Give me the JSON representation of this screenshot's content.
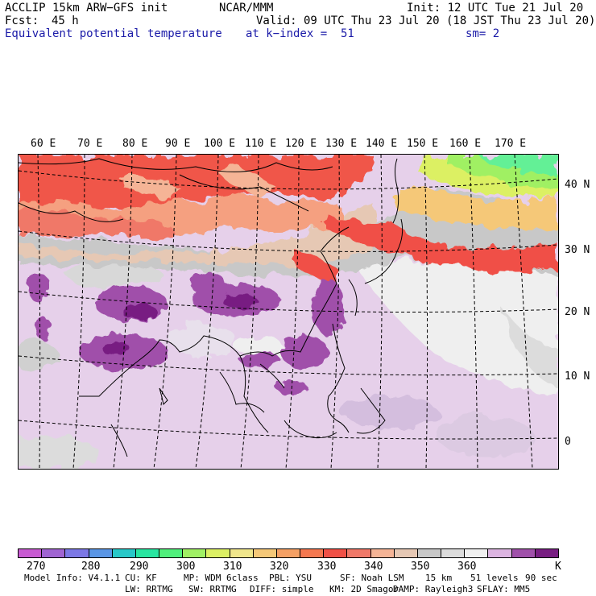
{
  "header": {
    "model": "ACCLIP 15km ARW−GFS init",
    "org": "NCAR/MMM",
    "init": "Init: 12 UTC Tue 21 Jul 20",
    "fcst_label": "Fcst:",
    "fcst_value": "45 h",
    "valid": "Valid: 09 UTC Thu 23 Jul 20 (18 JST Thu 23 Jul 20)",
    "field": "Equivalent potential temperature",
    "level": "at k−index =  51",
    "smooth": "sm= 2"
  },
  "map": {
    "lon_labels": [
      "60 E",
      "70 E",
      "80 E",
      "90 E",
      "100 E",
      "110 E",
      "120 E",
      "130 E",
      "140 E",
      "150 E",
      "160 E",
      "170 E"
    ],
    "lat_labels": [
      "40 N",
      "30 N",
      "20 N",
      "10 N",
      "0"
    ]
  },
  "colorbar": {
    "colors": [
      "#c85ad2",
      "#a064d2",
      "#7c78e6",
      "#5a96e6",
      "#28c8c8",
      "#28e6a0",
      "#50f07c",
      "#a0f064",
      "#dcf064",
      "#f0e68c",
      "#f5c878",
      "#f5a064",
      "#f57850",
      "#f05046",
      "#f07868",
      "#f5b496",
      "#e6c8b4",
      "#c8c8c8",
      "#dcdcdc",
      "#f0f0f0",
      "#dcb4e1",
      "#a050aa",
      "#781e82"
    ],
    "labels": [
      "270",
      "280",
      "290",
      "300",
      "310",
      "320",
      "330",
      "340",
      "350",
      "360"
    ],
    "units": "K"
  },
  "footer": {
    "line1": [
      "Model Info: V4.1.1",
      "CU: KF",
      "MP: WDM 6class",
      "PBL: YSU",
      "SF: Noah LSM",
      "15 km",
      "51 levels",
      "90 sec"
    ],
    "line2": [
      "LW: RRTMG",
      "SW: RRTMG",
      "DIFF: simple",
      "KM: 2D Smagor",
      "DAMP: Rayleigh3",
      "SFLAY: MM5"
    ]
  }
}
